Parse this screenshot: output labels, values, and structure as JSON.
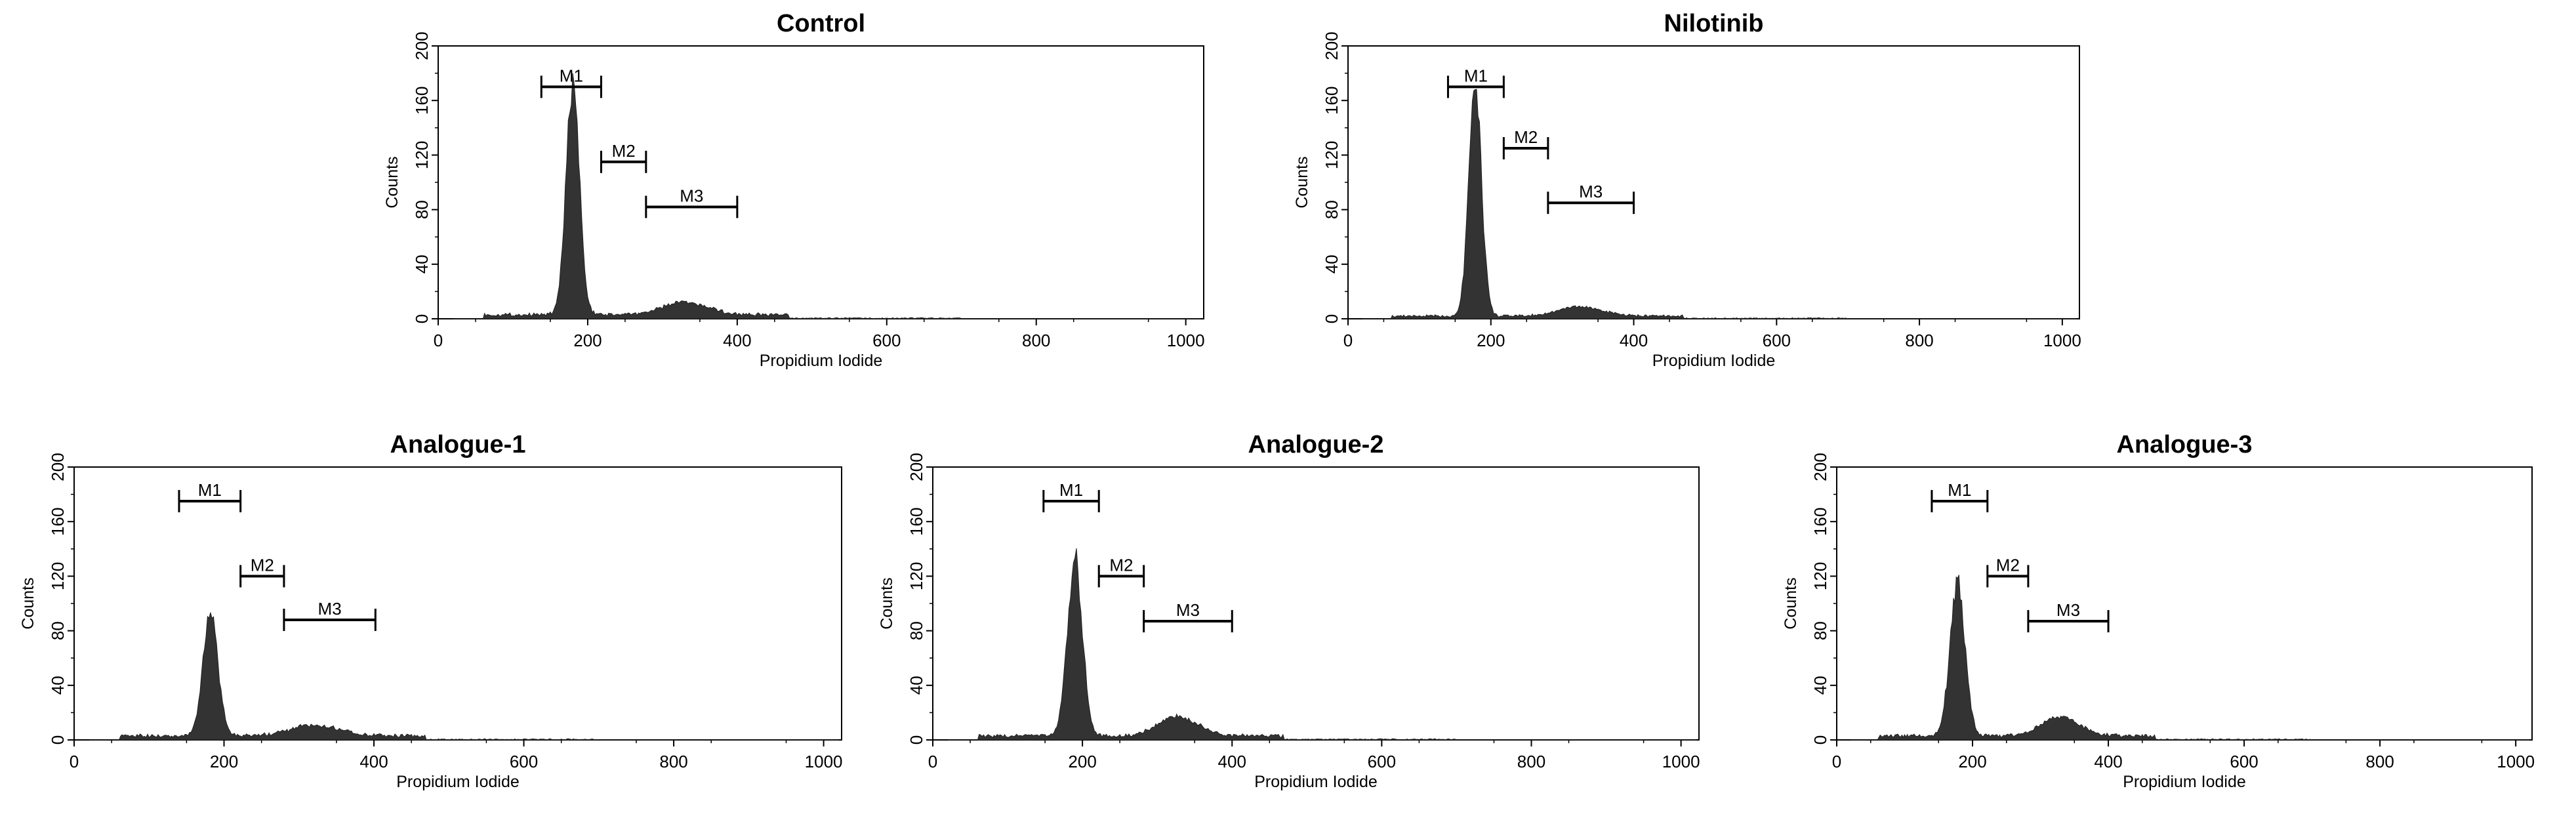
{
  "figure": {
    "description_panels": 5
  },
  "chart_data": [
    {
      "type": "area",
      "title": "Control",
      "xlabel": "Propidium Iodide",
      "ylabel": "Counts",
      "xlim": [
        0,
        1024
      ],
      "ylim": [
        0,
        200
      ],
      "xticks": [
        "0",
        "200",
        "400",
        "600",
        "800",
        "1000"
      ],
      "yticks": [
        "0",
        "40",
        "80",
        "120",
        "160",
        "200"
      ],
      "grid": false,
      "markers": [
        {
          "label": "M1",
          "x0": 138,
          "x1": 218,
          "y": 170
        },
        {
          "label": "M2",
          "x0": 218,
          "x1": 278,
          "y": 115
        },
        {
          "label": "M3",
          "x0": 278,
          "x1": 400,
          "y": 82
        }
      ],
      "peaks": [
        {
          "center": 180,
          "height": 168,
          "width": 9
        },
        {
          "center": 330,
          "height": 9,
          "width": 30
        }
      ],
      "baseline": 3
    },
    {
      "type": "area",
      "title": "Nilotinib",
      "xlabel": "Propidium Iodide",
      "ylabel": "Counts",
      "xlim": [
        0,
        1024
      ],
      "ylim": [
        0,
        200
      ],
      "xticks": [
        "0",
        "200",
        "400",
        "600",
        "800",
        "1000"
      ],
      "yticks": [
        "0",
        "40",
        "80",
        "120",
        "160",
        "200"
      ],
      "grid": false,
      "markers": [
        {
          "label": "M1",
          "x0": 140,
          "x1": 218,
          "y": 170
        },
        {
          "label": "M2",
          "x0": 218,
          "x1": 280,
          "y": 125
        },
        {
          "label": "M3",
          "x0": 280,
          "x1": 400,
          "y": 85
        }
      ],
      "peaks": [
        {
          "center": 178,
          "height": 165,
          "width": 9
        },
        {
          "center": 325,
          "height": 7,
          "width": 30
        }
      ],
      "baseline": 2
    },
    {
      "type": "area",
      "title": "Analogue-1",
      "xlabel": "Propidium Iodide",
      "ylabel": "Counts",
      "xlim": [
        0,
        1024
      ],
      "ylim": [
        0,
        200
      ],
      "xticks": [
        "0",
        "200",
        "400",
        "600",
        "800",
        "1000"
      ],
      "yticks": [
        "0",
        "40",
        "80",
        "120",
        "160",
        "200"
      ],
      "grid": false,
      "markers": [
        {
          "label": "M1",
          "x0": 140,
          "x1": 222,
          "y": 175
        },
        {
          "label": "M2",
          "x0": 222,
          "x1": 280,
          "y": 120
        },
        {
          "label": "M3",
          "x0": 280,
          "x1": 402,
          "y": 88
        }
      ],
      "peaks": [
        {
          "center": 182,
          "height": 90,
          "width": 10
        },
        {
          "center": 322,
          "height": 8,
          "width": 32
        }
      ],
      "baseline": 3
    },
    {
      "type": "area",
      "title": "Analogue-2",
      "xlabel": "Propidium Iodide",
      "ylabel": "Counts",
      "xlim": [
        0,
        1024
      ],
      "ylim": [
        0,
        200
      ],
      "xticks": [
        "0",
        "200",
        "400",
        "600",
        "800",
        "1000"
      ],
      "yticks": [
        "0",
        "40",
        "80",
        "120",
        "160",
        "200"
      ],
      "grid": false,
      "markers": [
        {
          "label": "M1",
          "x0": 148,
          "x1": 222,
          "y": 175
        },
        {
          "label": "M2",
          "x0": 222,
          "x1": 282,
          "y": 120
        },
        {
          "label": "M3",
          "x0": 282,
          "x1": 400,
          "y": 87
        }
      ],
      "peaks": [
        {
          "center": 190,
          "height": 130,
          "width": 10
        },
        {
          "center": 328,
          "height": 14,
          "width": 26
        }
      ],
      "baseline": 3
    },
    {
      "type": "area",
      "title": "Analogue-3",
      "xlabel": "Propidium Iodide",
      "ylabel": "Counts",
      "xlim": [
        0,
        1024
      ],
      "ylim": [
        0,
        200
      ],
      "xticks": [
        "0",
        "200",
        "400",
        "600",
        "800",
        "1000"
      ],
      "yticks": [
        "0",
        "40",
        "80",
        "120",
        "160",
        "200"
      ],
      "grid": false,
      "markers": [
        {
          "label": "M1",
          "x0": 140,
          "x1": 222,
          "y": 175
        },
        {
          "label": "M2",
          "x0": 222,
          "x1": 282,
          "y": 120
        },
        {
          "label": "M3",
          "x0": 282,
          "x1": 400,
          "y": 87
        }
      ],
      "peaks": [
        {
          "center": 178,
          "height": 112,
          "width": 11
        },
        {
          "center": 330,
          "height": 14,
          "width": 28
        }
      ],
      "baseline": 3
    }
  ]
}
